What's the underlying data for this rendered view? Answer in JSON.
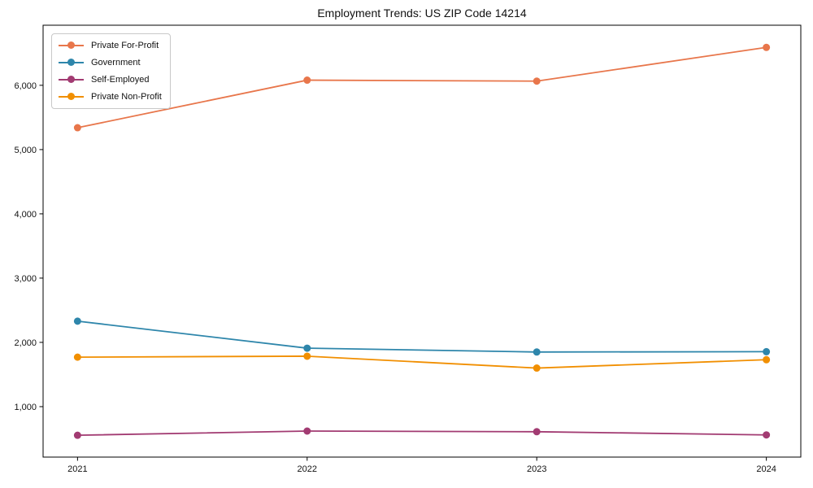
{
  "title": "Employment Trends: US ZIP Code 14214",
  "chart_data": {
    "type": "line",
    "title": "Employment Trends: US ZIP Code 14214",
    "x": [
      2021,
      2022,
      2023,
      2024
    ],
    "x_tick_labels": [
      "2021",
      "2022",
      "2023",
      "2024"
    ],
    "series": [
      {
        "name": "Private For-Profit",
        "color": "#E8764B",
        "values": [
          5340,
          6080,
          6065,
          6590
        ]
      },
      {
        "name": "Government",
        "color": "#2E86AB",
        "values": [
          2330,
          1910,
          1850,
          1855
        ]
      },
      {
        "name": "Self-Employed",
        "color": "#A23B72",
        "values": [
          555,
          620,
          610,
          560
        ]
      },
      {
        "name": "Private Non-Profit",
        "color": "#F18F01",
        "values": [
          1770,
          1785,
          1600,
          1730
        ]
      }
    ],
    "xlabel": "",
    "ylabel": "",
    "xlim": [
      2020.85,
      2024.15
    ],
    "ylim": [
      215,
      6935
    ],
    "yticks": [
      1000,
      2000,
      3000,
      4000,
      5000,
      6000
    ],
    "ytick_labels": [
      "1,000",
      "2,000",
      "3,000",
      "4,000",
      "5,000",
      "6,000"
    ],
    "legend": {
      "position": "upper-left",
      "entries": [
        "Private For-Profit",
        "Government",
        "Self-Employed",
        "Private Non-Profit"
      ]
    },
    "grid": false,
    "marker": "circle",
    "marker_radius": 4.5,
    "line_width": 1.8,
    "frame_color": "#000000"
  }
}
